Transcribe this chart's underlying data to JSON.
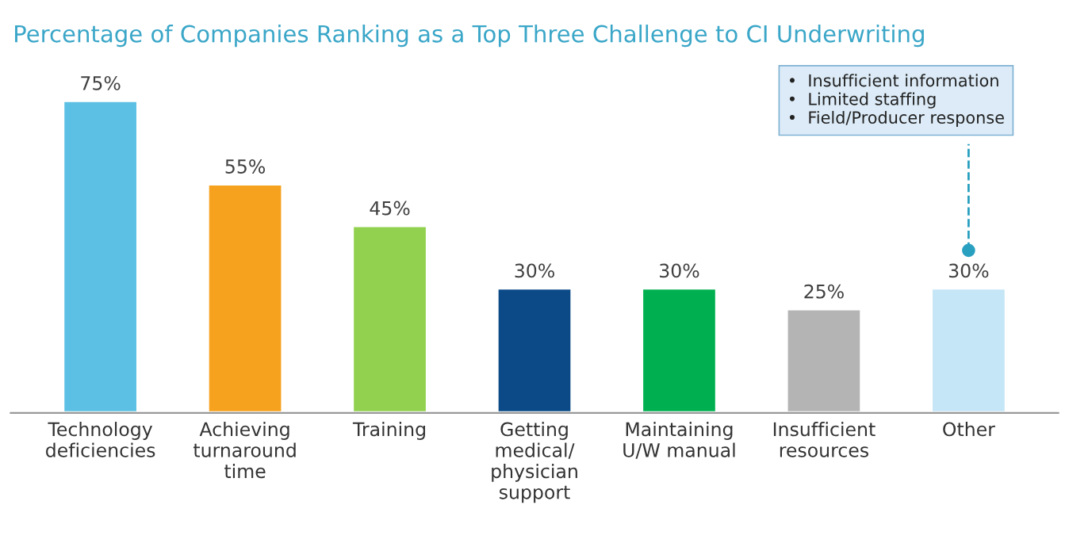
{
  "chart_data": {
    "type": "bar",
    "title": "Percentage of Companies Ranking as a Top Three Challenge to CI Underwriting",
    "categories": [
      "Technology\ndeficiencies",
      "Achieving\nturnaround\ntime",
      "Training",
      "Getting\nmedical/\nphysician\nsupport",
      "Maintaining\nU/W manual",
      "Insufficient\nresources",
      "Other"
    ],
    "values": [
      75,
      55,
      45,
      30,
      30,
      25,
      30
    ],
    "colors": [
      "#5bc0e3",
      "#f6a21e",
      "#92d14f",
      "#0b4a87",
      "#00b050",
      "#b4b4b4",
      "#c4e6f6"
    ],
    "value_labels": [
      "75%",
      "55%",
      "45%",
      "30%",
      "30%",
      "25%",
      "30%"
    ],
    "annotations": [
      "•  Insufficient information\n•  Limited staffing\n•  Field/Producer response"
    ],
    "grid": false,
    "legend": false,
    "tick_labels": "x"
  }
}
